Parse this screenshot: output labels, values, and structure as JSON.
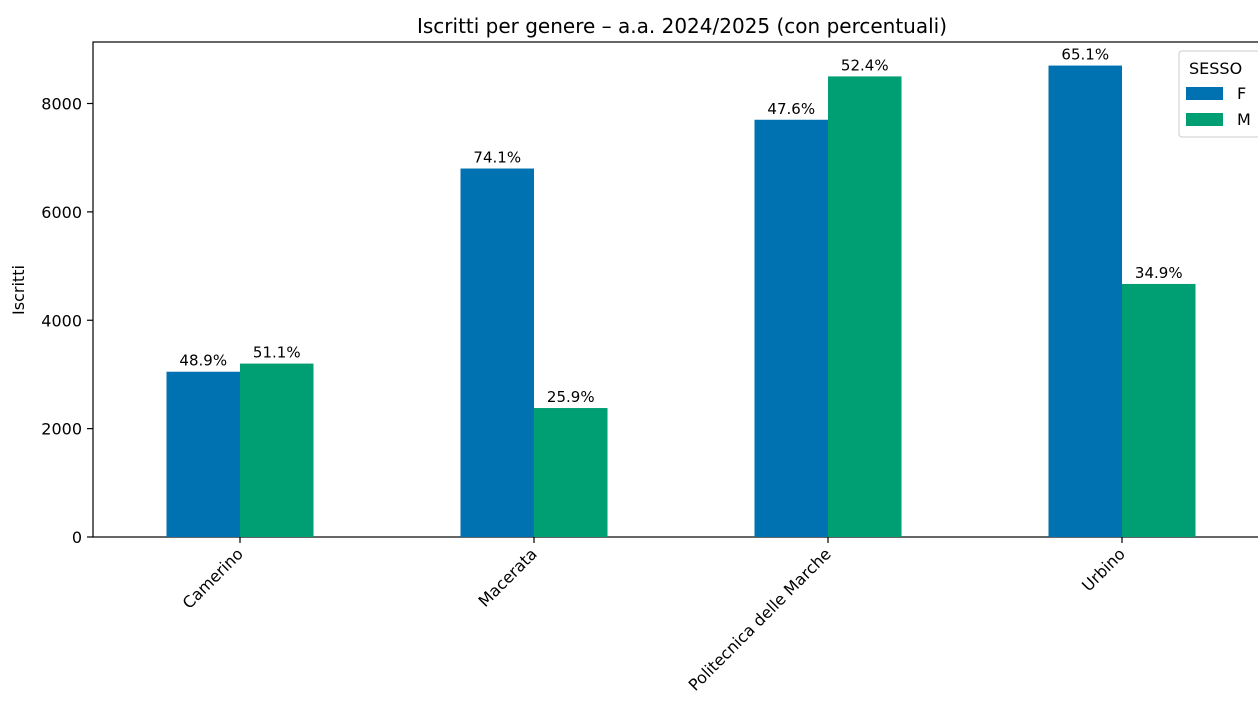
{
  "chart_data": {
    "type": "bar",
    "title": "Iscritti per genere – a.a. 2024/2025 (con percentuali)",
    "xlabel": "",
    "ylabel": "Iscritti",
    "categories": [
      "Camerino",
      "Macerata",
      "Politecnica delle Marche",
      "Urbino"
    ],
    "series": [
      {
        "name": "F",
        "color": "#0072b2",
        "values": [
          3050,
          6800,
          7700,
          8700
        ],
        "labels": [
          "48.9%",
          "74.1%",
          "47.6%",
          "65.1%"
        ]
      },
      {
        "name": "M",
        "color": "#009e73",
        "values": [
          3200,
          2380,
          8500,
          4670
        ],
        "labels": [
          "51.1%",
          "25.9%",
          "52.4%",
          "34.9%"
        ]
      }
    ],
    "yticks": [
      0,
      2000,
      4000,
      6000,
      8000
    ],
    "ylim": [
      0,
      9135
    ],
    "legend": {
      "title": "SESSO",
      "placement": "top-right"
    },
    "grid": false
  }
}
